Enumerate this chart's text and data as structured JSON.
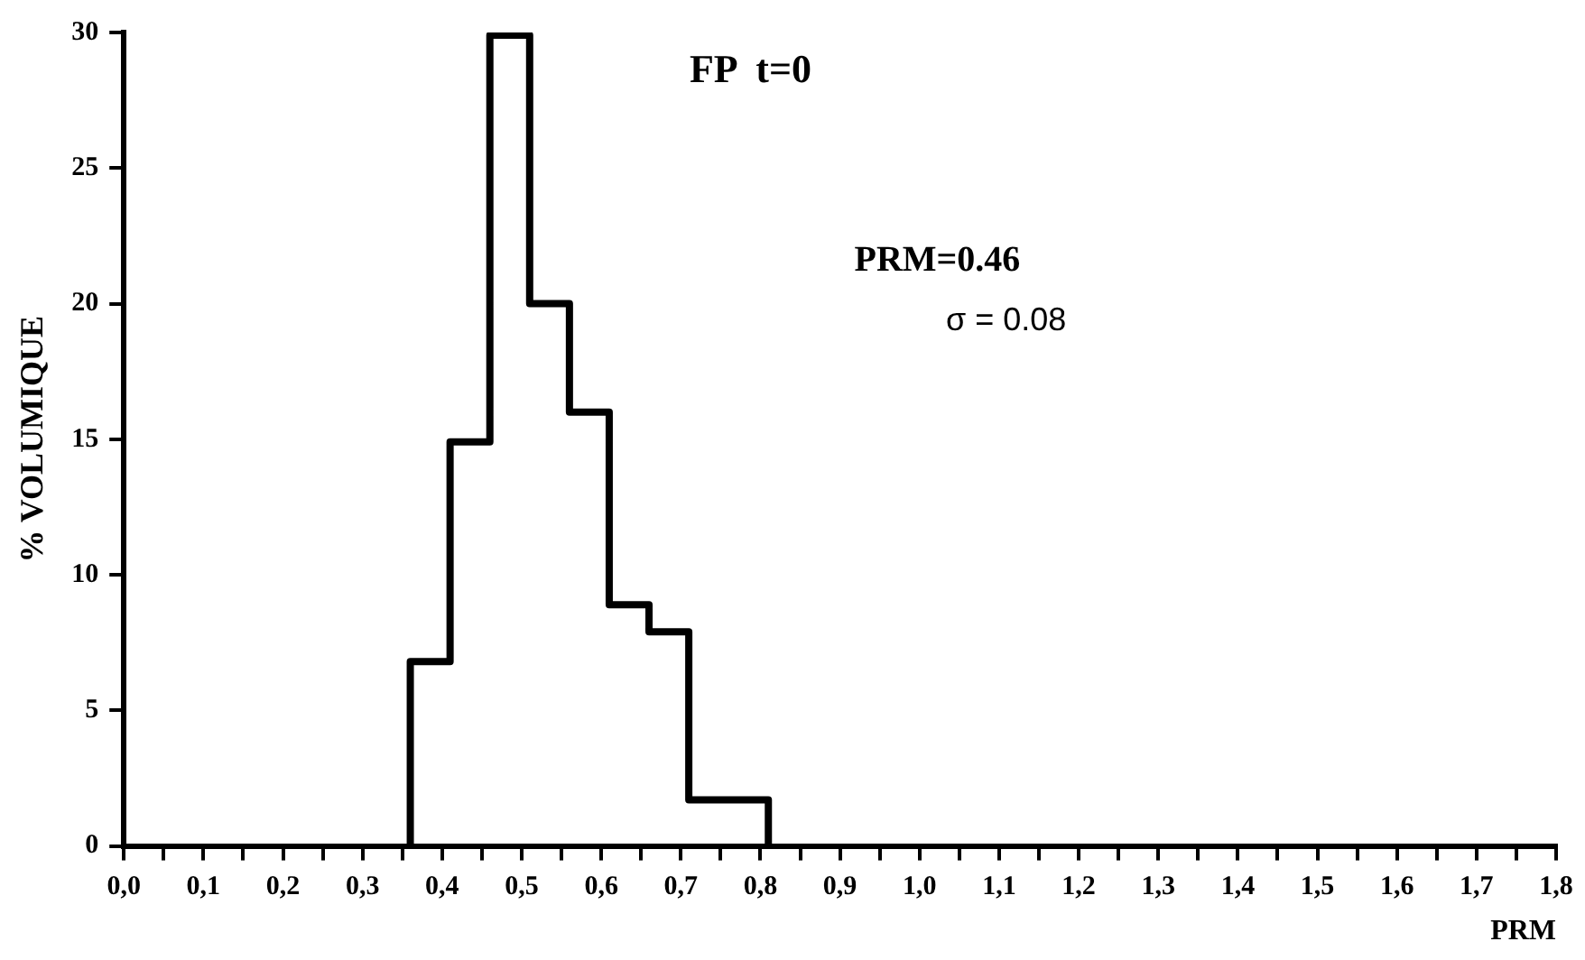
{
  "chart_data": {
    "type": "histogram",
    "title": "FP  t=0",
    "xlabel": "PRM",
    "ylabel": "% VOLUMIQUE",
    "annotations": [
      "PRM=0.46",
      "σ = 0.08"
    ],
    "bins": [
      0.36,
      0.41,
      0.46,
      0.51,
      0.56,
      0.61,
      0.66,
      0.71,
      0.76,
      0.81
    ],
    "values": [
      6.8,
      14.9,
      29.9,
      20,
      16,
      8.9,
      7.9,
      1.7,
      1.7
    ],
    "color": "#000000",
    "xlim": [
      0,
      1.8
    ],
    "xticks": [
      {
        "value": 0,
        "label": "0,0"
      },
      {
        "value": 0.05,
        "label": null
      },
      {
        "value": 0.1,
        "label": "0,1"
      },
      {
        "value": 0.15,
        "label": null
      },
      {
        "value": 0.2,
        "label": "0,2"
      },
      {
        "value": 0.25,
        "label": null
      },
      {
        "value": 0.3,
        "label": "0,3"
      },
      {
        "value": 0.35,
        "label": null
      },
      {
        "value": 0.4,
        "label": "0,4"
      },
      {
        "value": 0.45,
        "label": null
      },
      {
        "value": 0.5,
        "label": "0,5"
      },
      {
        "value": 0.55,
        "label": null
      },
      {
        "value": 0.6,
        "label": "0,6"
      },
      {
        "value": 0.65,
        "label": null
      },
      {
        "value": 0.7,
        "label": "0,7"
      },
      {
        "value": 0.75,
        "label": null
      },
      {
        "value": 0.8,
        "label": "0,8"
      },
      {
        "value": 0.85,
        "label": null
      },
      {
        "value": 0.9,
        "label": "0,9"
      },
      {
        "value": 0.95,
        "label": null
      },
      {
        "value": 1,
        "label": "1,0"
      },
      {
        "value": 1.05,
        "label": null
      },
      {
        "value": 1.1,
        "label": "1,1"
      },
      {
        "value": 1.15,
        "label": null
      },
      {
        "value": 1.2,
        "label": "1,2"
      },
      {
        "value": 1.25,
        "label": null
      },
      {
        "value": 1.3,
        "label": "1,3"
      },
      {
        "value": 1.35,
        "label": null
      },
      {
        "value": 1.4,
        "label": "1,4"
      },
      {
        "value": 1.45,
        "label": null
      },
      {
        "value": 1.5,
        "label": "1,5"
      },
      {
        "value": 1.55,
        "label": null
      },
      {
        "value": 1.6,
        "label": "1,6"
      },
      {
        "value": 1.65,
        "label": null
      },
      {
        "value": 1.7,
        "label": "1,7"
      },
      {
        "value": 1.75,
        "label": null
      },
      {
        "value": 1.8,
        "label": "1,8"
      }
    ],
    "ylim": [
      0,
      30
    ],
    "yticks": [
      0,
      5,
      10,
      15,
      20,
      25,
      30
    ],
    "grid": false,
    "legend": false
  }
}
